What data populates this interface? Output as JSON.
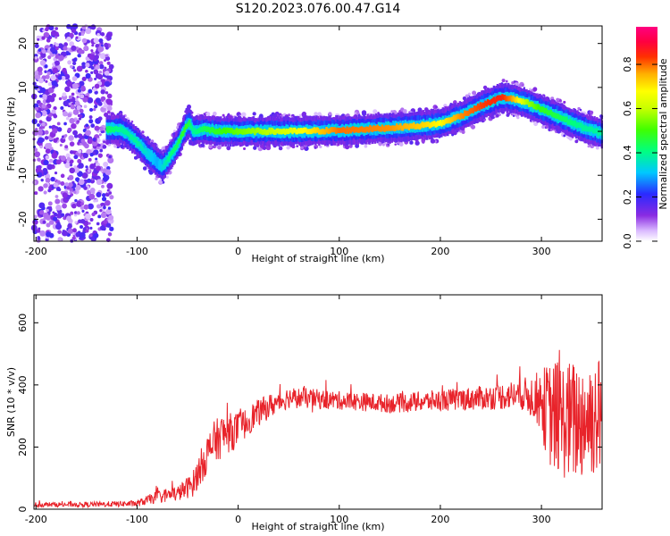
{
  "title": "S120.2023.076.00.47.G14",
  "colors": {
    "snr_line": "#e8232a",
    "background": "#ffffff",
    "axes": "#000000"
  },
  "chart_data": [
    {
      "type": "heatmap",
      "title": "S120.2023.076.00.47.G14",
      "xlabel": "Height of straight line (km)",
      "ylabel": "Frequency (Hz)",
      "xlim": [
        -202,
        360
      ],
      "ylim": [
        -25,
        24
      ],
      "xticks": [
        -200,
        -100,
        0,
        100,
        200,
        300
      ],
      "yticks": [
        -20,
        -10,
        0,
        10,
        20
      ],
      "colorbar": {
        "label": "Normalized spectral amplitude",
        "range": [
          0,
          0.97
        ],
        "ticks": [
          0.0,
          0.2,
          0.4,
          0.6,
          0.8
        ],
        "colormap": "hsv-like (white, violet, blue, cyan, green, yellow, orange, red, magenta)"
      },
      "ridge": {
        "description": "peak frequency track vs height",
        "x": [
          -130,
          -115,
          -100,
          -90,
          -80,
          -75,
          -70,
          -60,
          -52,
          -48,
          -45,
          -35,
          -20,
          0,
          50,
          100,
          150,
          180,
          200,
          220,
          240,
          260,
          270,
          285,
          300,
          320,
          340,
          360
        ],
        "y": [
          0.5,
          0.5,
          -2.5,
          -5,
          -7,
          -8,
          -6.5,
          -3,
          1,
          2,
          0,
          0.5,
          0,
          0,
          0,
          0.2,
          0.8,
          1.3,
          1.8,
          3.5,
          5.8,
          7.7,
          7.5,
          6.5,
          5,
          3,
          1,
          -0.5
        ],
        "amplitude": [
          0.45,
          0.4,
          0.4,
          0.35,
          0.3,
          0.35,
          0.4,
          0.45,
          0.5,
          0.45,
          0.4,
          0.45,
          0.5,
          0.55,
          0.65,
          0.82,
          0.8,
          0.75,
          0.7,
          0.8,
          0.85,
          0.88,
          0.8,
          0.6,
          0.5,
          0.45,
          0.4,
          0.4
        ]
      },
      "noise_region": {
        "x_range": [
          -202,
          -125
        ],
        "description": "scattered low-amplitude violet noise across all frequencies"
      }
    },
    {
      "type": "line",
      "title": "",
      "xlabel": "Height of straight line (km)",
      "ylabel": "SNR (10 * v/v)",
      "xlim": [
        -202,
        360
      ],
      "ylim": [
        0,
        690
      ],
      "xticks": [
        -200,
        -100,
        0,
        100,
        200,
        300
      ],
      "yticks": [
        0,
        200,
        400,
        600
      ],
      "series": [
        {
          "x": [
            -202,
            -150,
            -100,
            -80,
            -60,
            -45,
            -35,
            -25,
            -15,
            -5,
            5,
            15,
            30,
            50,
            100,
            150,
            200,
            250,
            280,
            295,
            310,
            330,
            350,
            360
          ],
          "y": [
            15,
            15,
            18,
            40,
            50,
            80,
            150,
            210,
            240,
            250,
            270,
            300,
            330,
            360,
            350,
            340,
            350,
            360,
            370,
            360,
            300,
            280,
            300,
            300
          ],
          "noise_amplitude": [
            8,
            8,
            10,
            20,
            25,
            40,
            60,
            70,
            70,
            60,
            50,
            45,
            40,
            35,
            30,
            30,
            35,
            40,
            50,
            80,
            180,
            200,
            200,
            200
          ]
        }
      ]
    }
  ]
}
